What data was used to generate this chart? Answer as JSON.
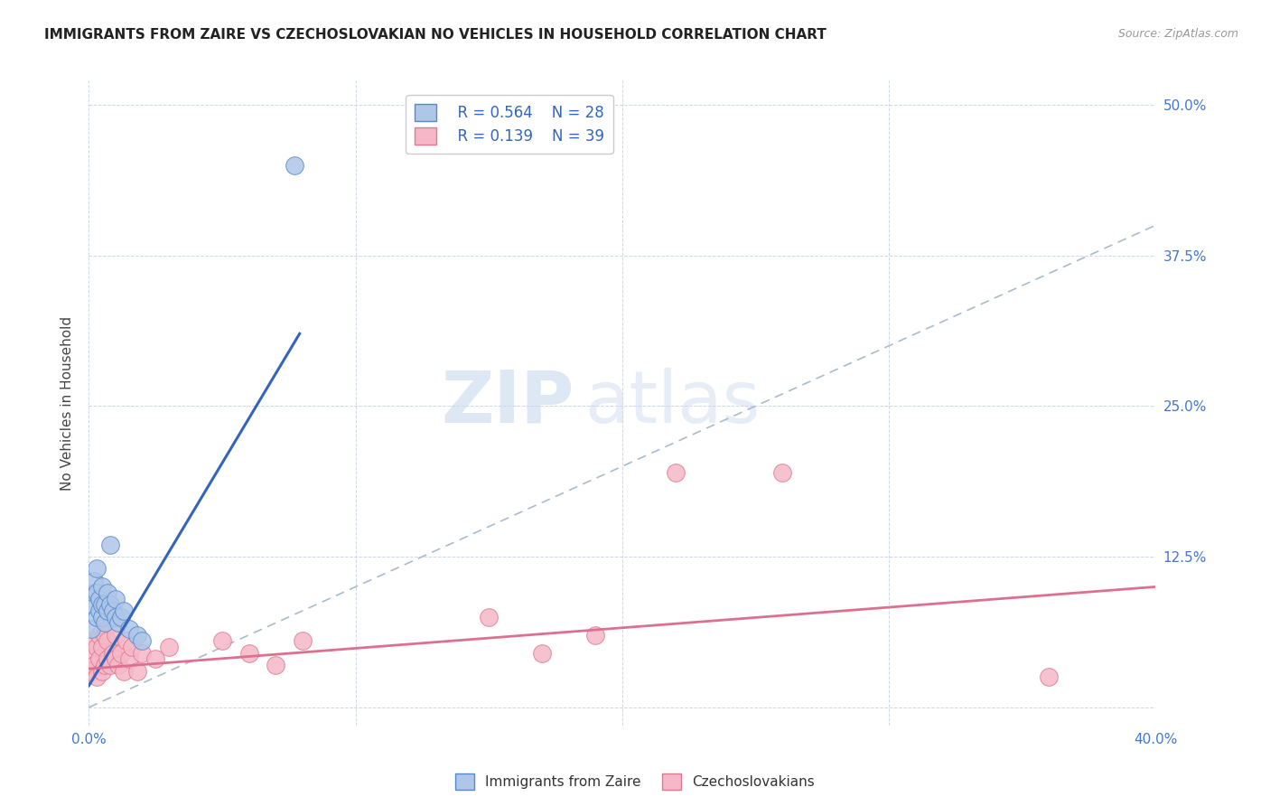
{
  "title": "IMMIGRANTS FROM ZAIRE VS CZECHOSLOVAKIAN NO VEHICLES IN HOUSEHOLD CORRELATION CHART",
  "source": "Source: ZipAtlas.com",
  "ylabel": "No Vehicles in Household",
  "xlim": [
    0.0,
    0.4
  ],
  "ylim": [
    -0.015,
    0.52
  ],
  "legend_r_zaire": "0.564",
  "legend_n_zaire": "28",
  "legend_r_czech": "0.139",
  "legend_n_czech": "39",
  "color_zaire_fill": "#aec6e8",
  "color_czech_fill": "#f5b8c8",
  "color_zaire_edge": "#5588cc",
  "color_czech_edge": "#e07890",
  "color_zaire_line": "#3366bb",
  "color_czech_line": "#dd7090",
  "color_diag": "#aabbcc",
  "watermark_zip": "ZIP",
  "watermark_atlas": "atlas",
  "zaire_scatter_x": [
    0.001,
    0.001,
    0.002,
    0.002,
    0.003,
    0.003,
    0.003,
    0.004,
    0.004,
    0.005,
    0.005,
    0.005,
    0.006,
    0.006,
    0.007,
    0.007,
    0.008,
    0.008,
    0.009,
    0.01,
    0.01,
    0.011,
    0.012,
    0.013,
    0.015,
    0.018,
    0.02,
    0.077
  ],
  "zaire_scatter_y": [
    0.065,
    0.085,
    0.095,
    0.105,
    0.075,
    0.095,
    0.115,
    0.08,
    0.09,
    0.075,
    0.085,
    0.1,
    0.07,
    0.085,
    0.08,
    0.095,
    0.085,
    0.135,
    0.08,
    0.075,
    0.09,
    0.07,
    0.075,
    0.08,
    0.065,
    0.06,
    0.055,
    0.45
  ],
  "czech_scatter_x": [
    0.001,
    0.001,
    0.002,
    0.002,
    0.003,
    0.003,
    0.004,
    0.004,
    0.005,
    0.005,
    0.006,
    0.006,
    0.007,
    0.007,
    0.008,
    0.008,
    0.009,
    0.01,
    0.01,
    0.011,
    0.012,
    0.013,
    0.014,
    0.015,
    0.016,
    0.018,
    0.02,
    0.025,
    0.03,
    0.05,
    0.06,
    0.07,
    0.08,
    0.15,
    0.17,
    0.19,
    0.22,
    0.26,
    0.36
  ],
  "czech_scatter_y": [
    0.03,
    0.045,
    0.035,
    0.055,
    0.025,
    0.05,
    0.04,
    0.06,
    0.03,
    0.05,
    0.035,
    0.06,
    0.04,
    0.055,
    0.035,
    0.075,
    0.045,
    0.04,
    0.06,
    0.035,
    0.045,
    0.03,
    0.055,
    0.04,
    0.05,
    0.03,
    0.045,
    0.04,
    0.05,
    0.055,
    0.045,
    0.035,
    0.055,
    0.075,
    0.045,
    0.06,
    0.195,
    0.195,
    0.025
  ],
  "zaire_line_x": [
    0.0,
    0.079
  ],
  "zaire_line_y": [
    0.018,
    0.31
  ],
  "czech_line_x": [
    0.0,
    0.4
  ],
  "czech_line_y": [
    0.032,
    0.1
  ]
}
